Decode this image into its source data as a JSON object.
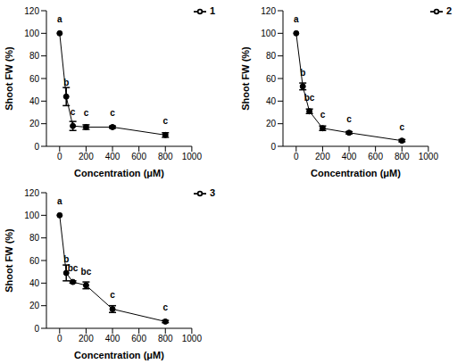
{
  "chart_data": [
    {
      "type": "line",
      "xlabel": "Concentration (μM)",
      "ylabel": "Shoot FW (%)",
      "x": [
        0,
        50,
        100,
        200,
        400,
        800
      ],
      "xlim": [
        -100,
        1000
      ],
      "xticks": [
        0,
        200,
        400,
        600,
        800,
        1000
      ],
      "ylim": [
        0,
        120
      ],
      "yticks": [
        0,
        20,
        40,
        60,
        80,
        100,
        120
      ],
      "legend": "upper right",
      "marker": "circle",
      "series": [
        {
          "name": "1",
          "color": "#000000",
          "values": [
            100,
            44,
            18,
            17,
            17,
            10
          ],
          "errors": [
            0,
            8,
            4,
            2,
            1,
            2
          ],
          "annotations": [
            "a",
            "b",
            "c",
            "c",
            "c",
            "c"
          ]
        }
      ]
    },
    {
      "type": "line",
      "xlabel": "Concentration (μM)",
      "ylabel": "Shoot FW (%)",
      "x": [
        0,
        50,
        100,
        200,
        400,
        800
      ],
      "xlim": [
        -100,
        1000
      ],
      "xticks": [
        0,
        200,
        400,
        600,
        800,
        1000
      ],
      "ylim": [
        0,
        120
      ],
      "yticks": [
        0,
        20,
        40,
        60,
        80,
        100,
        120
      ],
      "legend": "upper right",
      "marker": "circle",
      "series": [
        {
          "name": "2",
          "color": "#000000",
          "values": [
            100,
            53,
            31,
            16,
            12,
            5
          ],
          "errors": [
            0,
            3,
            2,
            2,
            1,
            1
          ],
          "annotations": [
            "a",
            "b",
            "bc",
            "c",
            "c",
            "c"
          ]
        }
      ]
    },
    {
      "type": "line",
      "xlabel": "Concentration (μM)",
      "ylabel": "Shoot FW (%)",
      "x": [
        0,
        50,
        100,
        200,
        400,
        800
      ],
      "xlim": [
        -100,
        1000
      ],
      "xticks": [
        0,
        200,
        400,
        600,
        800,
        1000
      ],
      "ylim": [
        0,
        120
      ],
      "yticks": [
        0,
        20,
        40,
        60,
        80,
        100,
        120
      ],
      "legend": "upper right",
      "marker": "circle",
      "series": [
        {
          "name": "3",
          "color": "#000000",
          "values": [
            100,
            49,
            41,
            38,
            17,
            6
          ],
          "errors": [
            0,
            7,
            1,
            3,
            3,
            1
          ],
          "annotations": [
            "a",
            "b",
            "bc",
            "bc",
            "c",
            "c"
          ]
        }
      ]
    }
  ]
}
